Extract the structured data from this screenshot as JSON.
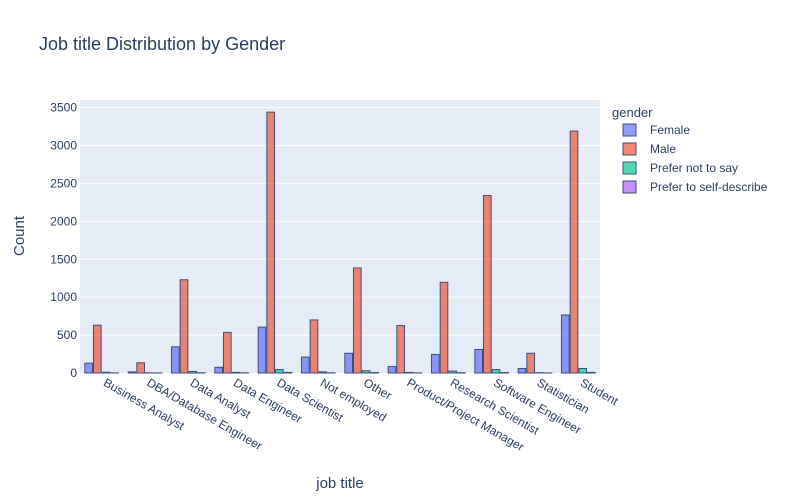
{
  "chart_data": {
    "type": "bar",
    "title": "Job title Distribution by Gender",
    "xlabel": "job title",
    "ylabel": "Count",
    "ylim": [
      0,
      3600
    ],
    "yticks": [
      0,
      500,
      1000,
      1500,
      2000,
      2500,
      3000,
      3500
    ],
    "grid": true,
    "legend_title": "gender",
    "legend_position": "right",
    "categories": [
      "Business Analyst",
      "DBA/Database Engineer",
      "Data Analyst",
      "Data Engineer",
      "Data Scientist",
      "Not employed",
      "Other",
      "Product/Project Manager",
      "Research Scientist",
      "Software Engineer",
      "Statistician",
      "Student"
    ],
    "series": [
      {
        "name": "Female",
        "color": "#636efa",
        "values": [
          130,
          15,
          345,
          75,
          605,
          210,
          260,
          85,
          245,
          310,
          60,
          765
        ]
      },
      {
        "name": "Male",
        "color": "#ef553b",
        "values": [
          630,
          135,
          1230,
          535,
          3440,
          700,
          1385,
          625,
          1195,
          2340,
          260,
          3190
        ]
      },
      {
        "name": "Prefer not to say",
        "color": "#00cc96",
        "values": [
          10,
          3,
          20,
          8,
          45,
          15,
          30,
          8,
          25,
          45,
          5,
          60
        ]
      },
      {
        "name": "Prefer to self-describe",
        "color": "#ab63fa",
        "values": [
          2,
          1,
          3,
          2,
          8,
          3,
          5,
          2,
          4,
          6,
          1,
          8
        ]
      }
    ]
  }
}
